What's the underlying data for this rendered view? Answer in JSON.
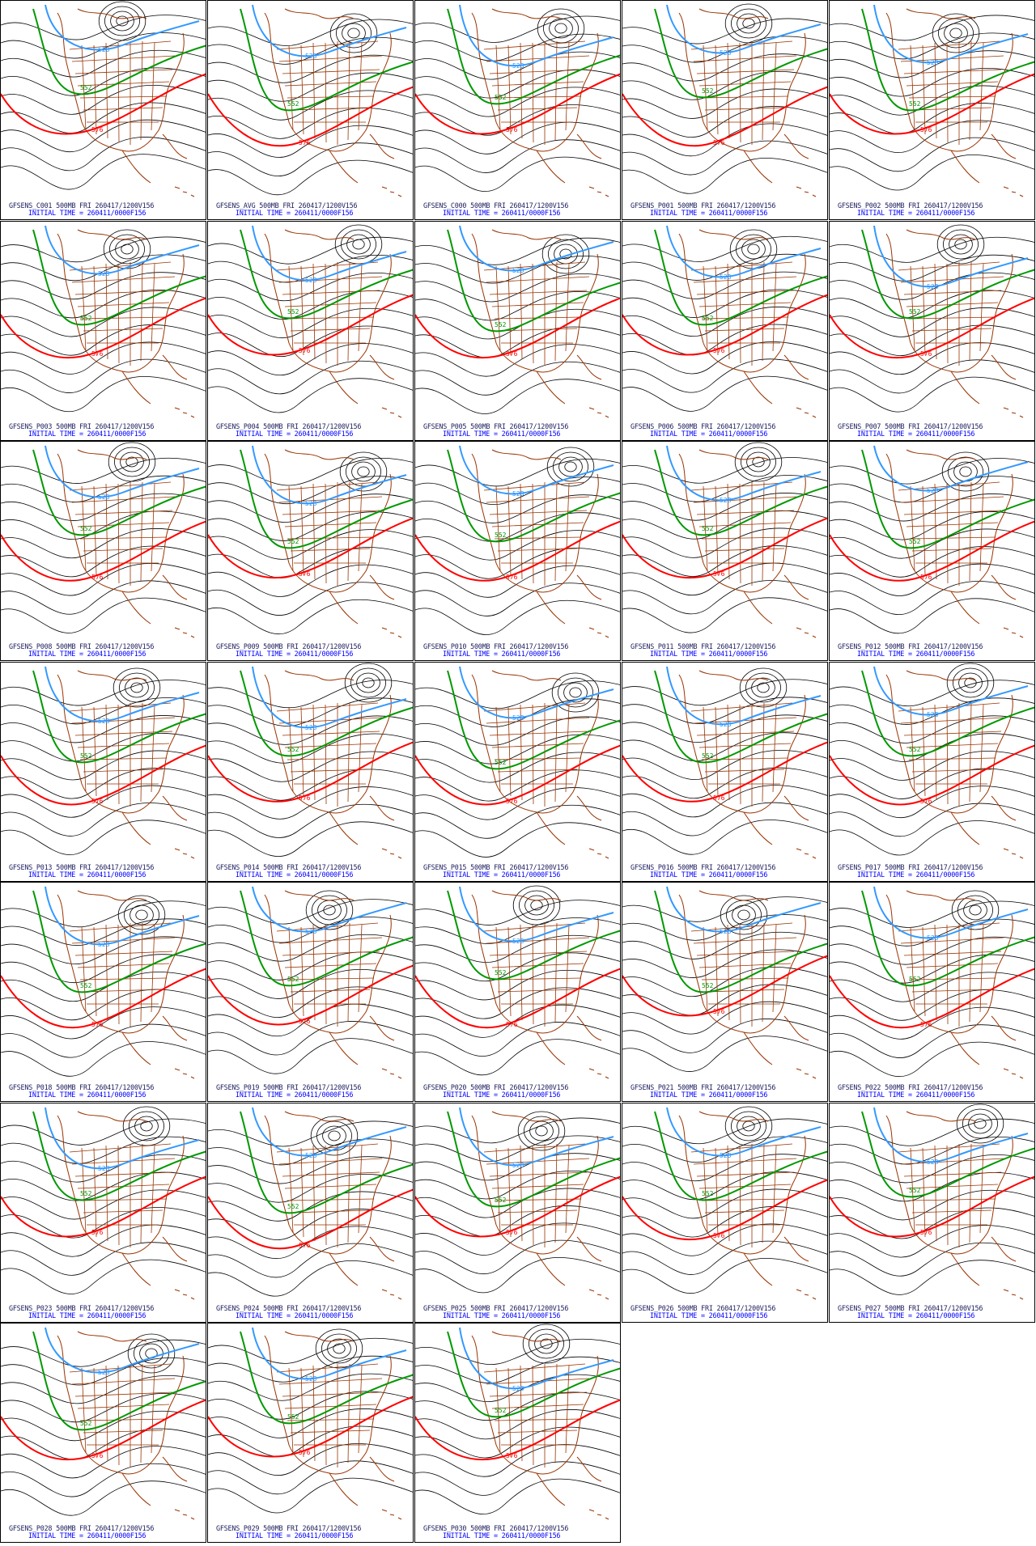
{
  "panels": [
    {
      "id": "GFSENS_C001 500MB FRI 260417/1200V156",
      "init": "INITIAL TIME = 260411/0000F156"
    },
    {
      "id": "GFSENS_AVG 500MB FRI 260417/1200V156",
      "init": "INITIAL TIME = 260411/0000F156"
    },
    {
      "id": "GFSENS_C000 500MB FRI 260417/1200V156",
      "init": "INITIAL TIME = 260411/0000F156"
    },
    {
      "id": "GFSENS_P001 500MB FRI 260417/1200V156",
      "init": "INITIAL TIME = 260411/0000F156"
    },
    {
      "id": "GFSENS_P002 500MB FRI 260417/1200V156",
      "init": "INITIAL TIME = 260411/0000F156"
    },
    {
      "id": "GFSENS_P003 500MB FRI 260417/1200V156",
      "init": "INITIAL TIME = 260411/0000F156"
    },
    {
      "id": "GFSENS_P004 500MB FRI 260417/1200V156",
      "init": "INITIAL TIME = 260411/0000F156"
    },
    {
      "id": "GFSENS_P005 500MB FRI 260417/1200V156",
      "init": "INITIAL TIME = 260411/0000F156"
    },
    {
      "id": "GFSENS_P006 500MB FRI 260417/1200V156",
      "init": "INITIAL TIME = 260411/0000F156"
    },
    {
      "id": "GFSENS_P007 500MB FRI 260417/1200V156",
      "init": "INITIAL TIME = 260411/0000F156"
    },
    {
      "id": "GFSENS_P008 500MB FRI 260417/1200V156",
      "init": "INITIAL TIME = 260411/0000F156"
    },
    {
      "id": "GFSENS_P009 500MB FRI 260417/1200V156",
      "init": "INITIAL TIME = 260411/0000F156"
    },
    {
      "id": "GFSENS_P010 500MB FRI 260417/1200V156",
      "init": "INITIAL TIME = 260411/0000F156"
    },
    {
      "id": "GFSENS_P011 500MB FRI 260417/1200V156",
      "init": "INITIAL TIME = 260411/0000F156"
    },
    {
      "id": "GFSENS_P012 500MB FRI 260417/1200V156",
      "init": "INITIAL TIME = 260411/0000F156"
    },
    {
      "id": "GFSENS_P013 500MB FRI 260417/1200V156",
      "init": "INITIAL TIME = 260411/0000F156"
    },
    {
      "id": "GFSENS_P014 500MB FRI 260417/1200V156",
      "init": "INITIAL TIME = 260411/0000F156"
    },
    {
      "id": "GFSENS_P015 500MB FRI 260417/1200V156",
      "init": "INITIAL TIME = 260411/0000F156"
    },
    {
      "id": "GFSENS_P016 500MB FRI 260417/1200V156",
      "init": "INITIAL TIME = 260411/0000F156"
    },
    {
      "id": "GFSENS_P017 500MB FRI 260417/1200V156",
      "init": "INITIAL TIME = 260411/0000F156"
    },
    {
      "id": "GFSENS_P018 500MB FRI 260417/1200V156",
      "init": "INITIAL TIME = 260411/0000F156"
    },
    {
      "id": "GFSENS_P019 500MB FRI 260417/1200V156",
      "init": "INITIAL TIME = 260411/0000F156"
    },
    {
      "id": "GFSENS_P020 500MB FRI 260417/1200V156",
      "init": "INITIAL TIME = 260411/0000F156"
    },
    {
      "id": "GFSENS_P021 500MB FRI 260417/1200V156",
      "init": "INITIAL TIME = 260411/0000F156"
    },
    {
      "id": "GFSENS_P022 500MB FRI 260417/1200V156",
      "init": "INITIAL TIME = 260411/0000F156"
    },
    {
      "id": "GFSENS_P023 500MB FRI 260417/1200V156",
      "init": "INITIAL TIME = 260411/0000F156"
    },
    {
      "id": "GFSENS_P024 500MB FRI 260417/1200V156",
      "init": "INITIAL TIME = 260411/0000F156"
    },
    {
      "id": "GFSENS_P025 500MB FRI 260417/1200V156",
      "init": "INITIAL TIME = 260411/0000F156"
    },
    {
      "id": "GFSENS_P026 500MB FRI 260417/1200V156",
      "init": "INITIAL TIME = 260411/0000F156"
    },
    {
      "id": "GFSENS_P027 500MB FRI 260417/1200V156",
      "init": "INITIAL TIME = 260411/0000F156"
    },
    {
      "id": "GFSENS_P028 500MB FRI 260417/1200V156",
      "init": "INITIAL TIME = 260411/0000F156"
    },
    {
      "id": "GFSENS_P029 500MB FRI 260417/1200V156",
      "init": "INITIAL TIME = 260411/0000F156"
    },
    {
      "id": "GFSENS_P030 500MB FRI 260417/1200V156",
      "init": "INITIAL TIME = 260411/0000F156"
    }
  ],
  "contour_labels": {
    "blue": "528",
    "green": "552",
    "red": "576"
  },
  "colors": {
    "blue_contour": "#3399ff",
    "green_contour": "#009900",
    "red_contour": "#ff0000",
    "black_contour": "#000000",
    "map_lines": "#993300",
    "caption_line1": "#202060",
    "caption_line2": "#0000ff"
  }
}
